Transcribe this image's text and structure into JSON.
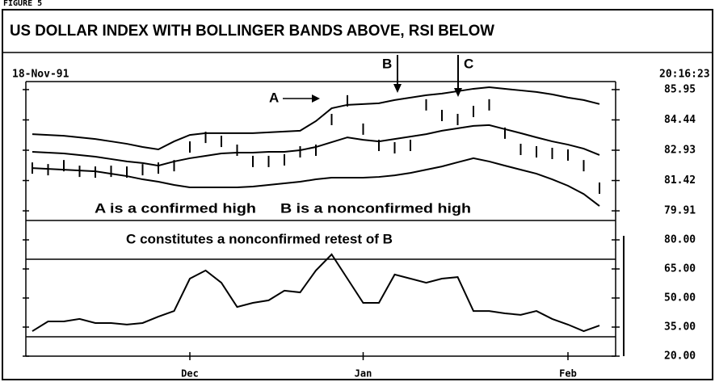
{
  "header": {
    "figure": "FIGURE 5",
    "title": "US DOLLAR INDEX WITH BOLLINGER BANDS ABOVE, RSI BELOW",
    "date": "18-Nov-91",
    "time": "20:16:23"
  },
  "chart_data": [
    {
      "type": "line",
      "annotations": [
        "A",
        "B",
        "C",
        "A is a confirmed high",
        "B is a nonconfirmed high",
        "C constitutes a nonconfirmed retest of B"
      ],
      "ylim": [
        79.43,
        86.35
      ],
      "yticks": [
        85.95,
        84.44,
        82.93,
        81.42,
        79.91
      ],
      "series": [
        {
          "color": "#000",
          "marker": "line",
          "values": [
            83.73,
            83.69,
            83.65,
            83.57,
            83.49,
            83.37,
            83.25,
            83.09,
            82.97,
            83.37,
            83.69,
            83.78,
            83.78,
            83.78,
            83.78,
            83.82,
            83.86,
            83.9,
            84.38,
            85.02,
            85.19,
            85.23,
            85.27,
            85.43,
            85.55,
            85.67,
            85.75,
            85.87,
            85.99,
            86.07,
            85.99,
            85.91,
            85.83,
            85.71,
            85.55,
            85.43,
            85.23
          ]
        },
        {
          "color": "#000",
          "marker": "line",
          "values": [
            82.85,
            82.81,
            82.77,
            82.69,
            82.61,
            82.49,
            82.37,
            82.29,
            82.16,
            82.37,
            82.53,
            82.65,
            82.77,
            82.81,
            82.81,
            82.85,
            82.85,
            82.93,
            83.09,
            83.33,
            83.57,
            83.45,
            83.37,
            83.49,
            83.61,
            83.73,
            83.9,
            84.02,
            84.14,
            84.18,
            83.98,
            83.78,
            83.57,
            83.37,
            83.21,
            83.01,
            82.69
          ]
        },
        {
          "color": "#000",
          "marker": "line",
          "values": [
            82.04,
            82.0,
            81.96,
            81.92,
            81.88,
            81.76,
            81.64,
            81.48,
            81.36,
            81.2,
            81.08,
            81.08,
            81.08,
            81.08,
            81.12,
            81.2,
            81.28,
            81.36,
            81.48,
            81.56,
            81.56,
            81.56,
            81.6,
            81.68,
            81.8,
            81.96,
            82.12,
            82.33,
            82.53,
            82.37,
            82.16,
            81.96,
            81.76,
            81.48,
            81.16,
            80.75,
            80.15
          ]
        },
        {
          "color": "#000",
          "marker": "bar",
          "values": [
            82.04,
            81.96,
            82.16,
            81.88,
            81.84,
            81.88,
            81.84,
            81.96,
            82.04,
            82.16,
            83.09,
            83.57,
            83.37,
            82.93,
            82.37,
            82.37,
            82.45,
            82.85,
            82.93,
            84.46,
            85.39,
            83.98,
            83.17,
            83.05,
            83.17,
            85.19,
            84.66,
            84.46,
            84.86,
            85.19,
            83.78,
            82.97,
            82.85,
            82.77,
            82.69,
            82.16,
            81.04
          ]
        }
      ]
    },
    {
      "type": "line",
      "categories": [
        null,
        null,
        null,
        null,
        null,
        null,
        null,
        null,
        null,
        null,
        "Dec",
        null,
        null,
        null,
        null,
        null,
        null,
        null,
        null,
        null,
        null,
        "Jan",
        null,
        null,
        null,
        null,
        null,
        null,
        null,
        null,
        null,
        null,
        null,
        null,
        "Feb",
        null,
        null
      ],
      "ylim": [
        20,
        90
      ],
      "yticks": [
        {
          "value": 80,
          "label": "80.00"
        },
        {
          "value": 65,
          "label": "65.00"
        },
        {
          "value": 50,
          "label": "50.00"
        },
        {
          "value": 35,
          "label": "35.00"
        },
        {
          "value": 20,
          "label": "20.00"
        }
      ],
      "reference_lines": [
        70,
        30
      ],
      "series": [
        {
          "color": "#000",
          "marker": "line",
          "values": [
            32.9,
            37.9,
            37.9,
            39.2,
            37.1,
            37.1,
            36.3,
            37.1,
            40.4,
            43.3,
            60.0,
            64.2,
            57.9,
            45.4,
            47.5,
            48.8,
            53.8,
            52.9,
            64.2,
            72.5,
            60.0,
            47.5,
            47.5,
            62.1,
            60.0,
            57.9,
            60.0,
            60.8,
            43.3,
            43.3,
            42.1,
            41.3,
            43.3,
            39.2,
            36.3,
            32.9,
            35.8
          ]
        }
      ]
    }
  ]
}
